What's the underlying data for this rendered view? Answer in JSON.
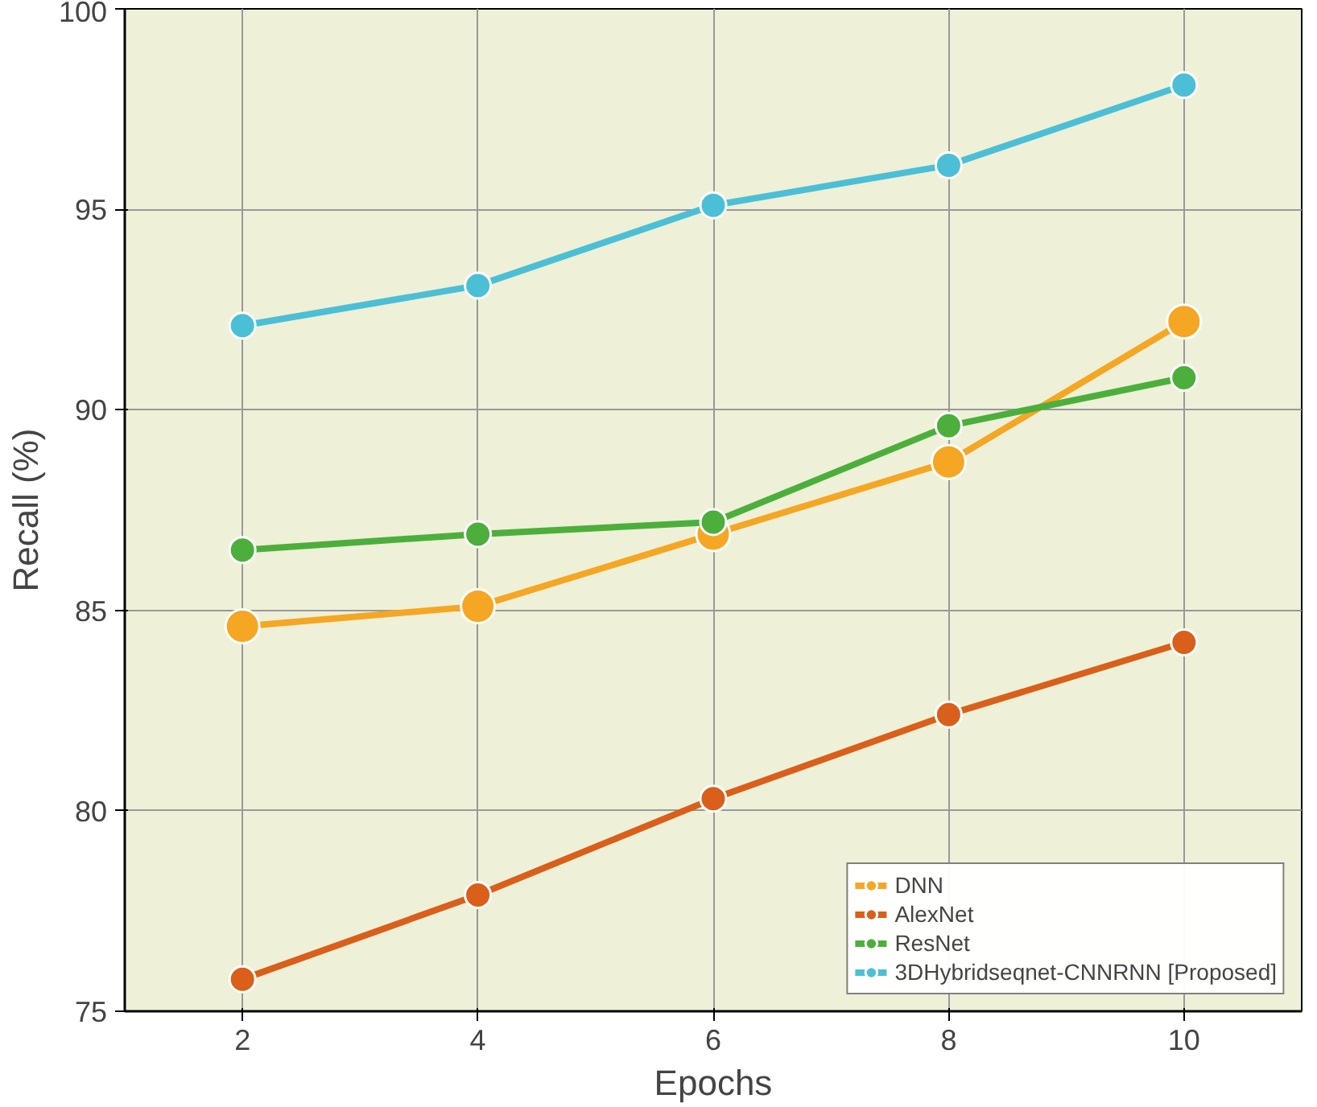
{
  "chart_data": {
    "type": "line",
    "xlabel": "Epochs",
    "ylabel": "Recall (%)",
    "x": [
      2,
      4,
      6,
      8,
      10
    ],
    "series": [
      {
        "name": "DNN",
        "color": "#f5a623",
        "values": [
          84.6,
          85.1,
          86.9,
          88.7,
          92.2
        ]
      },
      {
        "name": "AlexNet",
        "color": "#d95f1a",
        "values": [
          75.8,
          77.9,
          80.3,
          82.4,
          84.2
        ]
      },
      {
        "name": "ResNet",
        "color": "#4caf3c",
        "values": [
          86.5,
          86.9,
          87.2,
          89.6,
          90.8
        ]
      },
      {
        "name": "3DHybridseqnet-CNNRNN [Proposed]",
        "color": "#4bbfd6",
        "values": [
          92.1,
          93.1,
          95.1,
          96.1,
          98.1
        ]
      }
    ],
    "xlim": [
      1,
      11
    ],
    "ylim": [
      75,
      100
    ],
    "xticks": [
      2,
      4,
      6,
      8,
      10
    ],
    "yticks": [
      75,
      80,
      85,
      90,
      95,
      100
    ],
    "grid": true,
    "legend": "bottom right",
    "marker": "circle",
    "line_style": "solid"
  }
}
